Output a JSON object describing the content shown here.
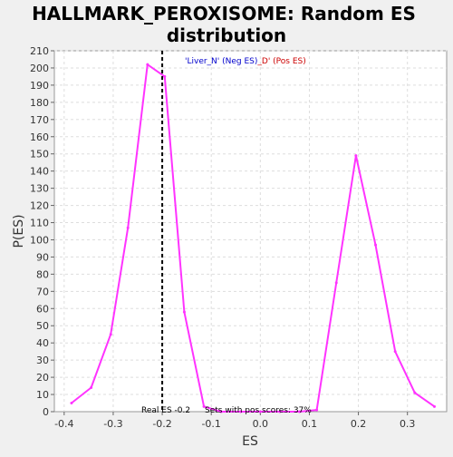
{
  "chart_data": {
    "type": "line",
    "title_lines": [
      "HALLMARK_PEROXISOME: Random ES",
      "distribution"
    ],
    "xlabel": "ES",
    "ylabel": "P(ES)",
    "xlim": [
      -0.42,
      0.38
    ],
    "ylim": [
      0,
      210
    ],
    "x_ticks": [
      -0.4,
      -0.3,
      -0.2,
      -0.1,
      0.0,
      0.1,
      0.2,
      0.3
    ],
    "x_tick_labels": [
      "-0.4",
      "-0.3",
      "-0.2",
      "-0.1",
      "0.0",
      "0.1",
      "0.2",
      "0.3"
    ],
    "y_ticks": [
      0,
      10,
      20,
      30,
      40,
      50,
      60,
      70,
      80,
      90,
      100,
      110,
      120,
      130,
      140,
      150,
      160,
      170,
      180,
      190,
      200,
      210
    ],
    "grid": true,
    "legend": {
      "neg": "'Liver_N' (Neg ES)",
      "sep": "_",
      "pos": "D' (Pos ES)",
      "neg_color": "#0000cc",
      "pos_color": "#cc0000"
    },
    "series": [
      {
        "color": "#ff33ff",
        "x": [
          -0.385,
          -0.345,
          -0.305,
          -0.27,
          -0.23,
          -0.195,
          -0.155,
          -0.115,
          -0.08,
          -0.04,
          0.0,
          0.04,
          0.08,
          0.115,
          0.155,
          0.195,
          0.235,
          0.275,
          0.315,
          0.355
        ],
        "y": [
          5,
          14,
          45,
          107,
          202,
          195,
          58,
          3,
          0,
          0,
          0,
          0,
          0,
          1,
          75,
          149,
          97,
          35,
          11,
          3
        ]
      }
    ],
    "real_es": {
      "value": -0.2,
      "label": "Real ES -0.2",
      "line_style": "dashed",
      "color": "#000000"
    },
    "annotation": "Sets with pos scores: 37%",
    "colors": {
      "background": "#f0f0f0",
      "plot_bg": "#ffffff",
      "grid": "#dddddd"
    }
  }
}
